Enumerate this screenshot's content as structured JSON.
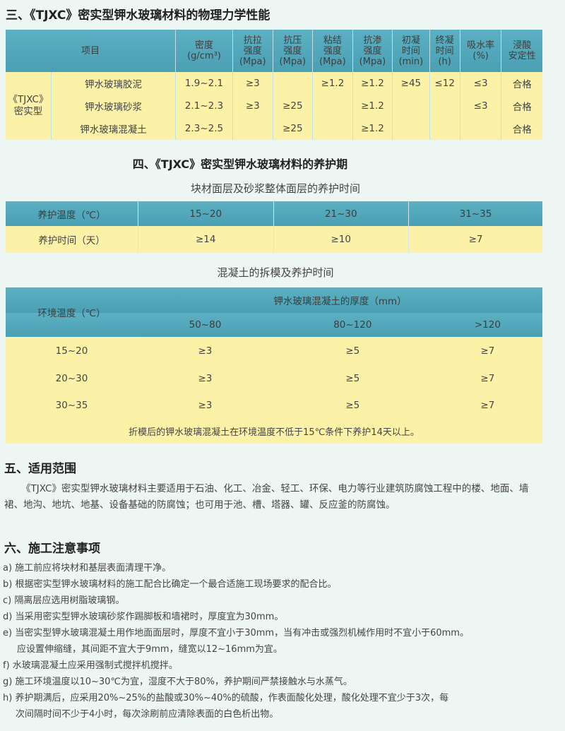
{
  "section3": {
    "title": "三、《TJXC》密实型钾水玻璃材料的物理力学性能",
    "headers": [
      "项目",
      "密度\n(g/cm³)",
      "抗拉\n强度\n(Mpa)",
      "抗压\n强度\n(Mpa)",
      "粘结\n强度\n(Mpa)",
      "抗渗\n强度\n(Mpa)",
      "初凝\n时间\n(min)",
      "终凝\n时间\n(h)",
      "吸水率\n(%)",
      "浸酸\n安定性"
    ],
    "group_label": "《TJXC》\n密实型",
    "rows": [
      [
        "钾水玻璃胶泥",
        "1.9~2.1",
        "≥3",
        "",
        "≥1.2",
        "≥1.2",
        "≥45",
        "≤12",
        "≤3",
        "合格"
      ],
      [
        "钾水玻璃砂浆",
        "2.1~2.3",
        "≥3",
        "≥25",
        "",
        "≥1.2",
        "",
        "",
        "≤3",
        "合格"
      ],
      [
        "钾水玻璃混凝土",
        "2.3~2.5",
        "",
        "≥25",
        "",
        "≥1.2",
        "",
        "",
        "",
        "合格"
      ]
    ]
  },
  "section4": {
    "title": "四、《TJXC》密实型钾水玻璃材料的养护期",
    "table1": {
      "caption": "块材面层及砂浆整体面层的养护时间",
      "rows": [
        [
          "养护温度（℃）",
          "15~20",
          "21~30",
          "31~35"
        ],
        [
          "养护时间（天）",
          "≥14",
          "≥10",
          "≥7"
        ]
      ]
    },
    "table2": {
      "caption": "混凝土的拆模及养护时间",
      "row_header": "环境温度（℃）",
      "group_header": "钾水玻璃混凝土的厚度（mm）",
      "columns": [
        "50~80",
        "80~120",
        ">120"
      ],
      "rows": [
        [
          "15~20",
          "≥3",
          "≥5",
          "≥7"
        ],
        [
          "20~30",
          "≥3",
          "≥5",
          "≥7"
        ],
        [
          "30~35",
          "≥3",
          "≥5",
          "≥7"
        ]
      ],
      "note": "折模后的钾水玻璃混凝土在环境温度不低于15℃条件下养护14天以上。"
    }
  },
  "section5": {
    "title": "五、适用范围",
    "text": "《TJXC》密实型钾水玻璃材料主要适用于石油、化工、冶金、轻工、环保、电力等行业建筑防腐蚀工程中的楼、地面、墙裙、地沟、地坑、地基、设备基础的防腐蚀；也可用于池、槽、塔器、罐、反应釜的防腐蚀。"
  },
  "section6": {
    "title": "六、施工注意事项",
    "items": [
      "a) 施工前应将块材和基层表面清理干净。",
      "b) 根据密实型钾水玻璃材料的施工配合比确定一个最合适施工现场要求的配合比。",
      "c) 隔离层应选用树脂玻璃钢。",
      "d) 当采用密实型钾水玻璃砂浆作踢脚板和墙裙时，厚度宜为30mm。",
      "e) 当密实型钾水玻璃混凝土用作地面面层时，厚度不宜小于30mm，当有冲击或强烈机械作用时不宜小于60mm。",
      "应设置伸缩缝，其间距不宜大于9mm，缝宽以12~16mm为宜。",
      "f) 水玻璃混凝土应采用强制式搅拌机搅拌。",
      "g) 施工环境温度以10~30℃为宜，湿度不大于80%，养护期间严禁接触水与水蒸气。",
      "h) 养护期满后，应采用20%~25%的盐酸或30%~40%的硫酸，作表面酸化处理，酸化处理不宜少于3次，每",
      "次间隔时间不少于4小时，每次涂刷前应清除表面的白色析出物。"
    ]
  }
}
